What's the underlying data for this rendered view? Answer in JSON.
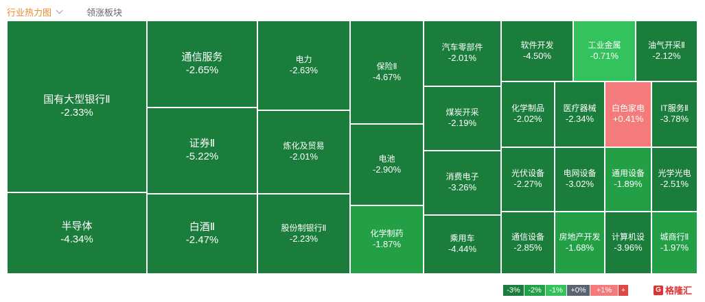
{
  "tabs": {
    "heatmap_label": "行业热力图",
    "lead_label": "领涨板块"
  },
  "colors": {
    "green_dark": "#1b7d3c",
    "green_mid": "#23a046",
    "green_light": "#33c25c",
    "neutral": "#5a6470",
    "red_light": "#f47b7b"
  },
  "sectors": [
    {
      "name": "国有大型银行Ⅱ",
      "change": "-2.33%",
      "tone": "dark",
      "size": "xl"
    },
    {
      "name": "半导体",
      "change": "-4.34%",
      "tone": "dark",
      "size": "xl"
    },
    {
      "name": "通信服务",
      "change": "-2.65%",
      "tone": "dark",
      "size": "l"
    },
    {
      "name": "证券Ⅱ",
      "change": "-5.22%",
      "tone": "dark",
      "size": "l"
    },
    {
      "name": "白酒Ⅱ",
      "change": "-2.47%",
      "tone": "dark",
      "size": "l"
    },
    {
      "name": "电力",
      "change": "-2.63%",
      "tone": "dark",
      "size": "m"
    },
    {
      "name": "炼化及贸易",
      "change": "-2.01%",
      "tone": "dark",
      "size": "m"
    },
    {
      "name": "股份制银行Ⅱ",
      "change": "-2.23%",
      "tone": "dark",
      "size": "m"
    },
    {
      "name": "保险Ⅱ",
      "change": "-4.67%",
      "tone": "dark",
      "size": "m"
    },
    {
      "name": "电池",
      "change": "-2.90%",
      "tone": "dark",
      "size": "m"
    },
    {
      "name": "化学制药",
      "change": "-1.87%",
      "tone": "mid",
      "size": "m"
    },
    {
      "name": "汽车零部件",
      "change": "-2.01%",
      "tone": "dark",
      "size": "m"
    },
    {
      "name": "煤炭开采",
      "change": "-2.19%",
      "tone": "dark",
      "size": "m"
    },
    {
      "name": "消费电子",
      "change": "-3.26%",
      "tone": "dark",
      "size": "m"
    },
    {
      "name": "乘用车",
      "change": "-4.44%",
      "tone": "dark",
      "size": "m"
    },
    {
      "name": "软件开发",
      "change": "-4.50%",
      "tone": "dark",
      "size": "m"
    },
    {
      "name": "工业金属",
      "change": "-0.71%",
      "tone": "light",
      "size": "m"
    },
    {
      "name": "油气开采Ⅱ",
      "change": "-2.12%",
      "tone": "dark",
      "size": "m"
    },
    {
      "name": "化学制品",
      "change": "-2.02%",
      "tone": "dark",
      "size": "m"
    },
    {
      "name": "医疗器械",
      "change": "-2.34%",
      "tone": "dark",
      "size": "m"
    },
    {
      "name": "白色家电",
      "change": "+0.41%",
      "tone": "red",
      "size": "m"
    },
    {
      "name": "IT服务Ⅱ",
      "change": "-3.78%",
      "tone": "dark",
      "size": "m"
    },
    {
      "name": "光伏设备",
      "change": "-2.27%",
      "tone": "dark",
      "size": "m"
    },
    {
      "name": "电网设备",
      "change": "-3.02%",
      "tone": "dark",
      "size": "m"
    },
    {
      "name": "通用设备",
      "change": "-1.89%",
      "tone": "mid",
      "size": "m"
    },
    {
      "name": "光学光电",
      "change": "-2.51%",
      "tone": "dark",
      "size": "m"
    },
    {
      "name": "通信设备",
      "change": "-2.85%",
      "tone": "dark",
      "size": "m"
    },
    {
      "name": "房地产开发",
      "change": "-1.68%",
      "tone": "mid",
      "size": "m"
    },
    {
      "name": "计算机设",
      "change": "-3.96%",
      "tone": "dark",
      "size": "m"
    },
    {
      "name": "城商行Ⅱ",
      "change": "-1.97%",
      "tone": "mid",
      "size": "m"
    }
  ],
  "legend": [
    {
      "label": "-3%",
      "color": "#1b7d3c"
    },
    {
      "label": "-2%",
      "color": "#23a046"
    },
    {
      "label": "-1%",
      "color": "#33c25c"
    },
    {
      "label": "+0%",
      "color": "#5a6470"
    },
    {
      "label": "+1%",
      "color": "#f47b7b"
    },
    {
      "label": "+",
      "color": "#e04848"
    }
  ],
  "watermark": {
    "logo": "G",
    "text": "格隆汇"
  }
}
